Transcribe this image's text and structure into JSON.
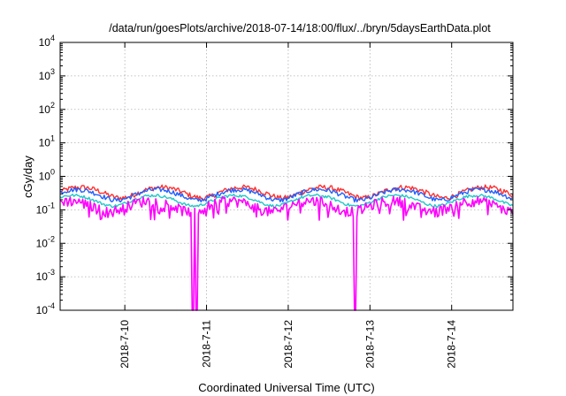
{
  "chart_data": {
    "type": "line",
    "title": "/data/run/goesPlots/archive/2018-07-14/18:00/flux/../bryn/5daysEarthData.plot",
    "xlabel": "Coordinated Universal Time (UTC)",
    "ylabel": "cGy/day",
    "y_scale": "log",
    "ylim": [
      0.0001,
      10000
    ],
    "y_ticks": [
      {
        "value": 0.0001,
        "base": "10",
        "exp": "-4"
      },
      {
        "value": 0.001,
        "base": "10",
        "exp": "-3"
      },
      {
        "value": 0.01,
        "base": "10",
        "exp": "-2"
      },
      {
        "value": 0.1,
        "base": "10",
        "exp": "-1"
      },
      {
        "value": 1,
        "base": "10",
        "exp": "0"
      },
      {
        "value": 10,
        "base": "10",
        "exp": "1"
      },
      {
        "value": 100,
        "base": "10",
        "exp": "2"
      },
      {
        "value": 1000,
        "base": "10",
        "exp": "3"
      },
      {
        "value": 10000,
        "base": "10",
        "exp": "4"
      }
    ],
    "xlim": [
      "2018-07-09T05:00",
      "2018-07-14T18:00"
    ],
    "x_ticks": [
      {
        "label": "2018-7-10",
        "date": "2018-07-10T00:00"
      },
      {
        "label": "2018-7-11",
        "date": "2018-07-11T00:00"
      },
      {
        "label": "2018-7-12",
        "date": "2018-07-12T00:00"
      },
      {
        "label": "2018-7-13",
        "date": "2018-07-13T00:00"
      },
      {
        "label": "2018-7-14",
        "date": "2018-07-14T00:00"
      }
    ],
    "grid": true,
    "series": [
      {
        "color": "#ff3030",
        "baseline": 0.35,
        "jitter": 0.18
      },
      {
        "color": "#2060ff",
        "baseline": 0.3,
        "jitter": 0.16
      },
      {
        "color": "#20c8c8",
        "baseline": 0.2,
        "jitter": 0.1
      },
      {
        "color": "#ff00ff",
        "baseline": 0.14,
        "jitter": 0.35,
        "dropouts": [
          "2018-07-10T20:00",
          "2018-07-10T21:00",
          "2018-07-12T19:45"
        ]
      }
    ]
  }
}
